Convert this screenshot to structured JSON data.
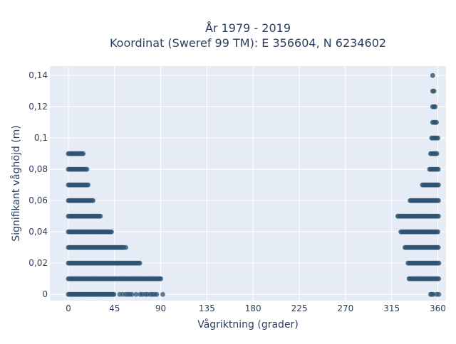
{
  "colors": {
    "marker": "#2d5470",
    "plot_bg": "#e5ecf6",
    "grid": "#ffffff",
    "text": "#2a3f5f"
  },
  "chart_data": {
    "type": "scatter",
    "title": "År 1979 - 2019",
    "subtitle": "Koordinat (Sweref 99 TM): E 356604, N 6234602",
    "xlabel": "Vågriktning (grader)",
    "ylabel": "Signifikant våghöjd (m)",
    "xlim": [
      -18,
      368
    ],
    "ylim": [
      -0.004,
      0.146
    ],
    "grid": true,
    "legend": "none",
    "xticks": [
      {
        "value": 0,
        "label": "0"
      },
      {
        "value": 45,
        "label": "45"
      },
      {
        "value": 90,
        "label": "90"
      },
      {
        "value": 135,
        "label": "135"
      },
      {
        "value": 180,
        "label": "180"
      },
      {
        "value": 225,
        "label": "225"
      },
      {
        "value": 270,
        "label": "270"
      },
      {
        "value": 315,
        "label": "315"
      },
      {
        "value": 360,
        "label": "360"
      }
    ],
    "yticks": [
      {
        "value": 0,
        "label": "0"
      },
      {
        "value": 0.02,
        "label": "0,02"
      },
      {
        "value": 0.04,
        "label": "0,04"
      },
      {
        "value": 0.06,
        "label": "0,06"
      },
      {
        "value": 0.08,
        "label": "0,08"
      },
      {
        "value": 0.1,
        "label": "0,1"
      },
      {
        "value": 0.12,
        "label": "0,12"
      },
      {
        "value": 0.14,
        "label": "0,14"
      }
    ],
    "series": [
      {
        "bands": [
          {
            "y": 0.0,
            "ranges": [
              [
                0,
                45
              ]
            ],
            "points": [
              50,
              53,
              56,
              58,
              60,
              62,
              66,
              70,
              72,
              75,
              77,
              80,
              82,
              84,
              86,
              92
            ]
          },
          {
            "y": 0.01,
            "ranges": [
              [
                0,
                91
              ]
            ],
            "points": []
          },
          {
            "y": 0.02,
            "ranges": [
              [
                0,
                70
              ]
            ],
            "points": []
          },
          {
            "y": 0.03,
            "ranges": [
              [
                0,
                55
              ]
            ],
            "points": [
              56
            ]
          },
          {
            "y": 0.04,
            "ranges": [
              [
                0,
                43
              ]
            ],
            "points": []
          },
          {
            "y": 0.05,
            "ranges": [
              [
                0,
                32
              ]
            ],
            "points": []
          },
          {
            "y": 0.06,
            "ranges": [
              [
                0,
                24
              ]
            ],
            "points": []
          },
          {
            "y": 0.07,
            "ranges": [
              [
                0,
                20
              ]
            ],
            "points": []
          },
          {
            "y": 0.08,
            "ranges": [
              [
                0,
                18
              ]
            ],
            "points": []
          },
          {
            "y": 0.09,
            "ranges": [
              [
                0,
                15
              ]
            ],
            "points": []
          }
        ]
      },
      {
        "bands": [
          {
            "y": 0.0,
            "ranges": [
              [
                353,
                356
              ]
            ],
            "points": [
              359,
              361
            ]
          },
          {
            "y": 0.01,
            "ranges": [
              [
                332,
                361
              ]
            ],
            "points": []
          },
          {
            "y": 0.02,
            "ranges": [
              [
                331,
                361
              ]
            ],
            "points": []
          },
          {
            "y": 0.03,
            "ranges": [
              [
                328,
                361
              ]
            ],
            "points": []
          },
          {
            "y": 0.04,
            "ranges": [
              [
                324,
                361
              ]
            ],
            "points": []
          },
          {
            "y": 0.05,
            "ranges": [
              [
                321,
                361
              ]
            ],
            "points": []
          },
          {
            "y": 0.06,
            "ranges": [
              [
                333,
                361
              ]
            ],
            "points": []
          },
          {
            "y": 0.07,
            "ranges": [
              [
                345,
                361
              ]
            ],
            "points": []
          },
          {
            "y": 0.08,
            "ranges": [
              [
                352,
                361
              ]
            ],
            "points": []
          },
          {
            "y": 0.09,
            "ranges": [
              [
                353,
                360
              ]
            ],
            "points": []
          },
          {
            "y": 0.1,
            "ranges": [
              [
                354,
                360
              ]
            ],
            "points": []
          },
          {
            "y": 0.11,
            "ranges": [
              [
                355,
                359
              ]
            ],
            "points": []
          },
          {
            "y": 0.12,
            "ranges": [
              [
                355,
                358
              ]
            ],
            "points": []
          },
          {
            "y": 0.13,
            "ranges": [
              [
                355,
                357
              ]
            ],
            "points": []
          },
          {
            "y": 0.14,
            "ranges": [
              [
                355,
                356
              ]
            ],
            "points": []
          }
        ]
      }
    ]
  }
}
